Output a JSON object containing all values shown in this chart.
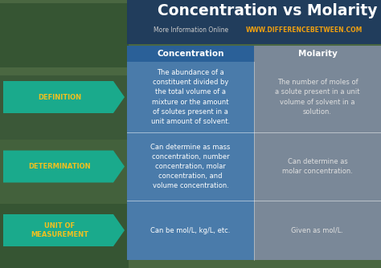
{
  "title": "Concentration vs Molarity",
  "subtitle_left": "More Information Online",
  "subtitle_right": "WWW.DIFFERENCEBETWEEN.COM",
  "col_headers": [
    "Concentration",
    "Molarity"
  ],
  "row_labels": [
    "DEFINITION",
    "DETERMINATION",
    "UNIT OF\nMEASUREMENT"
  ],
  "concentration_data": [
    "The abundance of a\nconstituent divided by\nthe total volume of a\nmixture or the amount\nof solutes present in a\nunit amount of solvent.",
    "Can determine as mass\nconcentration, number\nconcentration, molar\nconcentration, and\nvolume concentration.",
    "Can be mol/L, kg/L, etc."
  ],
  "molarity_data": [
    "The number of moles of\na solute present in a unit\nvolume of solvent in a\nsolution.",
    "Can determine as\nmolar concentration.",
    "Given as mol/L."
  ],
  "bg_forest_color": "#4a6741",
  "title_bg_color": "#1e3a5f",
  "header_blue": "#2a6098",
  "header_gray": "#7a8a92",
  "cell_blue": "#4a7baa",
  "cell_gray": "#7a8a92",
  "arrow_teal": "#1aaa8c",
  "row_label_color": "#f0c020",
  "title_color": "#ffffff",
  "subtitle_left_color": "#cccccc",
  "subtitle_right_color": "#f0a010",
  "conc_cell_color": "#4a7baa",
  "mol_cell_color": "#7a8898",
  "conc_text_color": "#ffffff",
  "mol_text_color": "#e0e0e0",
  "header_conc_color": "#2a6098",
  "header_mol_color": "#7a8898"
}
